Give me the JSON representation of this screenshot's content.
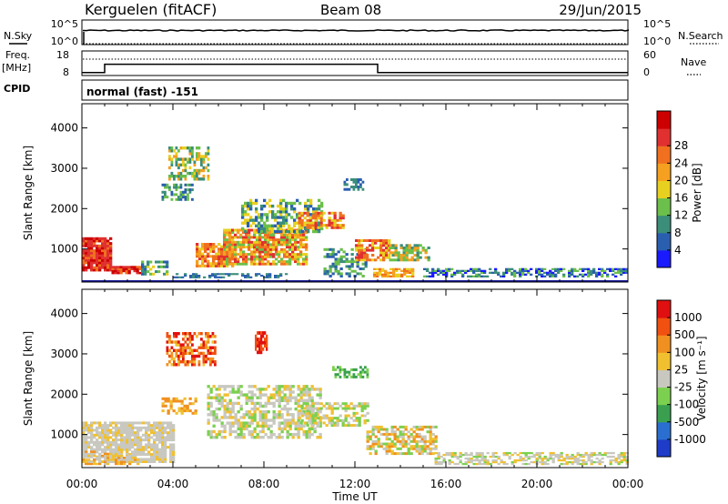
{
  "header": {
    "station": "Kerguelen (fitACF)",
    "beam": "Beam 08",
    "date": "29/Jun/2015"
  },
  "noise_panel": {
    "left_label": "N.Sky",
    "right_label": "N.Search",
    "left_ticks": [
      "10^5",
      "10^0"
    ],
    "right_ticks": [
      "10^5",
      "10^0"
    ]
  },
  "freq_panel": {
    "left_label_1": "Freq.",
    "left_label_2": "[MHz]",
    "right_label": "Nave",
    "left_ticks": [
      "18",
      "8"
    ],
    "right_ticks": [
      "60",
      "0"
    ],
    "freq_steps": [
      [
        0,
        9.2
      ],
      [
        1,
        12.6
      ],
      [
        13,
        9.2
      ],
      [
        24,
        9.2
      ]
    ],
    "nave_level": 40
  },
  "cpid": {
    "label": "CPID",
    "value": "normal (fast) -151"
  },
  "time_axis": {
    "label": "Time UT",
    "ticks": [
      "00:00",
      "04:00",
      "08:00",
      "12:00",
      "16:00",
      "20:00",
      "00:00"
    ]
  },
  "chart_data": [
    {
      "type": "heatmap",
      "quantity": "Power",
      "ylabel": "Slant Range [km]",
      "xlabel": "",
      "xlim": [
        0,
        24
      ],
      "ylim": [
        180,
        4600
      ],
      "yticks": [
        "1000",
        "2000",
        "3000",
        "4000"
      ],
      "colorbar_label": "Power [dB]",
      "colorbar_ticks": [
        "4",
        "8",
        "12",
        "16",
        "20",
        "24",
        "28"
      ],
      "colorbar_colors": [
        "#1a1aff",
        "#2a5fb0",
        "#3b8e7a",
        "#6bbf4a",
        "#e8d020",
        "#f5a020",
        "#f07020",
        "#e03030",
        "#cc0000"
      ]
    },
    {
      "type": "heatmap",
      "quantity": "Velocity",
      "ylabel": "Slant Range [km]",
      "xlabel": "Time UT",
      "xlim": [
        0,
        24
      ],
      "ylim": [
        180,
        4600
      ],
      "yticks": [
        "1000",
        "2000",
        "3000",
        "4000"
      ],
      "colorbar_label": "Velocity [m s⁻¹]",
      "colorbar_ticks": [
        "1000",
        "500",
        "100",
        "25",
        "-25",
        "-100",
        "-500",
        "-1000"
      ],
      "colorbar_colors": [
        "#1e3cc8",
        "#2a6fd0",
        "#3aa050",
        "#7cd050",
        "#c8c8c0",
        "#f0c030",
        "#f09020",
        "#f05010",
        "#e01010"
      ]
    }
  ]
}
